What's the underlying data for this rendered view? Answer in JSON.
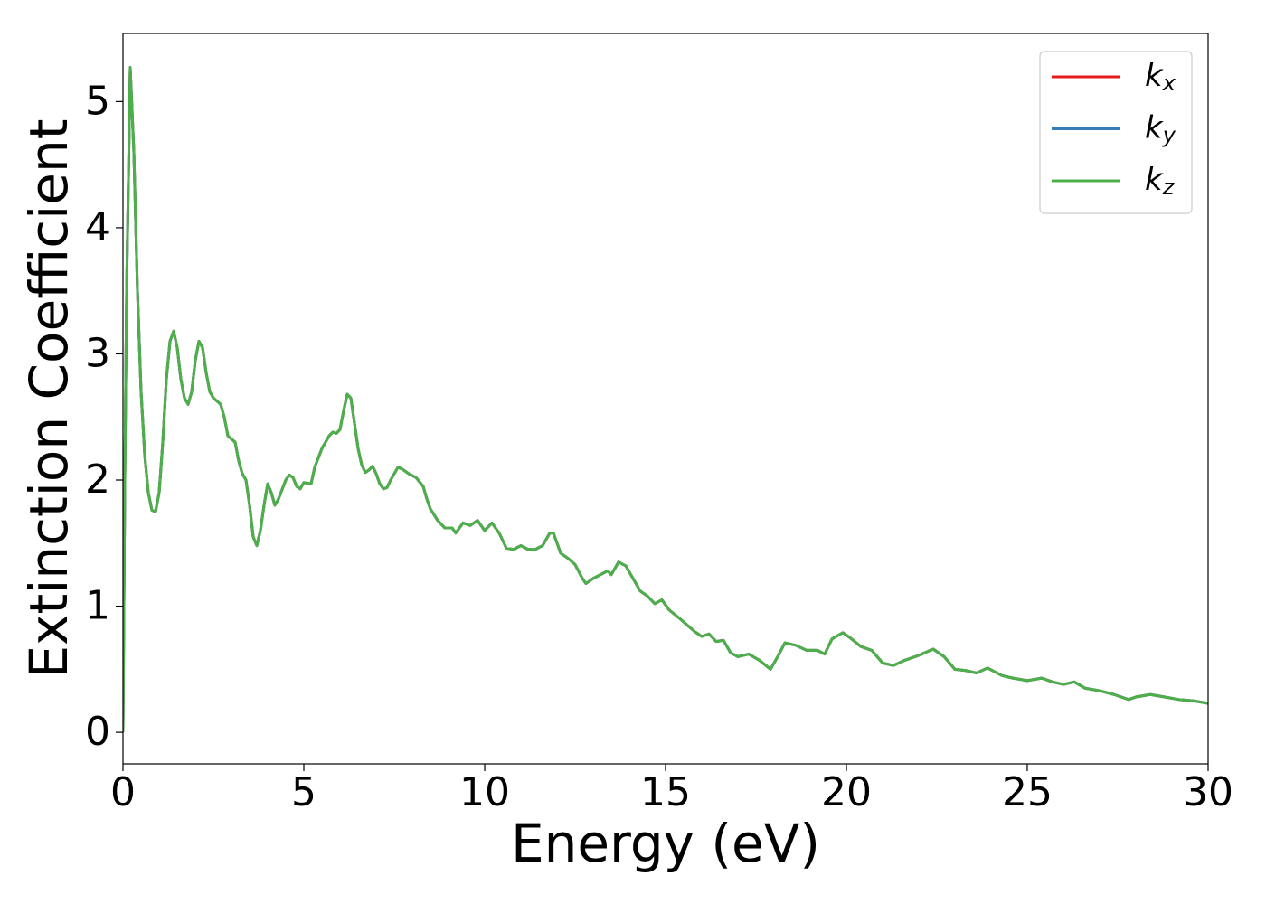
{
  "chart_data": {
    "type": "line",
    "x_label": "Energy (eV)",
    "y_label": "Extinction Coefficient",
    "x": [
      0,
      0.05,
      0.1,
      0.2,
      0.3,
      0.4,
      0.5,
      0.6,
      0.7,
      0.8,
      0.9,
      1.0,
      1.1,
      1.2,
      1.3,
      1.4,
      1.5,
      1.6,
      1.7,
      1.8,
      1.9,
      2.0,
      2.1,
      2.2,
      2.3,
      2.4,
      2.5,
      2.7,
      2.8,
      2.9,
      3.1,
      3.2,
      3.3,
      3.4,
      3.5,
      3.6,
      3.7,
      3.8,
      3.9,
      4.0,
      4.1,
      4.2,
      4.3,
      4.5,
      4.6,
      4.7,
      4.8,
      4.9,
      5.0,
      5.2,
      5.3,
      5.5,
      5.7,
      5.8,
      5.9,
      6.0,
      6.1,
      6.2,
      6.3,
      6.4,
      6.5,
      6.6,
      6.7,
      6.8,
      6.9,
      7.0,
      7.1,
      7.2,
      7.3,
      7.4,
      7.6,
      7.7,
      7.9,
      8.1,
      8.3,
      8.4,
      8.5,
      8.7,
      8.9,
      9.1,
      9.2,
      9.4,
      9.6,
      9.8,
      10.0,
      10.2,
      10.4,
      10.6,
      10.8,
      11.0,
      11.2,
      11.4,
      11.6,
      11.8,
      11.9,
      12.1,
      12.3,
      12.5,
      12.7,
      12.8,
      13.0,
      13.2,
      13.4,
      13.5,
      13.7,
      13.9,
      14.1,
      14.3,
      14.5,
      14.7,
      14.9,
      15.1,
      15.4,
      15.8,
      16.0,
      16.2,
      16.4,
      16.6,
      16.8,
      17.0,
      17.3,
      17.6,
      17.9,
      18.1,
      18.3,
      18.6,
      18.9,
      19.2,
      19.4,
      19.6,
      19.9,
      20.1,
      20.4,
      20.7,
      21.0,
      21.3,
      21.6,
      22.0,
      22.4,
      22.7,
      23.0,
      23.3,
      23.6,
      23.9,
      24.3,
      24.6,
      25.0,
      25.4,
      25.7,
      26.0,
      26.3,
      26.6,
      27.0,
      27.4,
      27.8,
      28.0,
      28.4,
      28.8,
      29.2,
      29.6,
      30.0
    ],
    "series": [
      {
        "name": "kx",
        "color": "#e41a1c",
        "values": [
          0,
          2.0,
          3.5,
          5.27,
          4.6,
          3.5,
          2.7,
          2.2,
          1.9,
          1.76,
          1.75,
          1.9,
          2.3,
          2.8,
          3.1,
          3.18,
          3.05,
          2.8,
          2.65,
          2.6,
          2.7,
          2.95,
          3.1,
          3.05,
          2.85,
          2.7,
          2.65,
          2.6,
          2.5,
          2.35,
          2.3,
          2.15,
          2.05,
          2.0,
          1.8,
          1.55,
          1.48,
          1.6,
          1.8,
          1.97,
          1.9,
          1.8,
          1.85,
          2.0,
          2.04,
          2.02,
          1.95,
          1.93,
          1.98,
          1.97,
          2.1,
          2.25,
          2.35,
          2.38,
          2.37,
          2.4,
          2.55,
          2.68,
          2.65,
          2.45,
          2.25,
          2.12,
          2.06,
          2.08,
          2.11,
          2.05,
          1.97,
          1.93,
          1.94,
          2.0,
          2.1,
          2.09,
          2.05,
          2.02,
          1.95,
          1.85,
          1.77,
          1.68,
          1.62,
          1.62,
          1.58,
          1.66,
          1.64,
          1.68,
          1.6,
          1.66,
          1.58,
          1.46,
          1.45,
          1.48,
          1.45,
          1.45,
          1.48,
          1.58,
          1.58,
          1.42,
          1.38,
          1.33,
          1.22,
          1.18,
          1.22,
          1.25,
          1.28,
          1.25,
          1.35,
          1.32,
          1.22,
          1.12,
          1.08,
          1.02,
          1.05,
          0.97,
          0.9,
          0.8,
          0.76,
          0.78,
          0.72,
          0.73,
          0.63,
          0.6,
          0.62,
          0.57,
          0.5,
          0.6,
          0.71,
          0.69,
          0.65,
          0.65,
          0.62,
          0.74,
          0.79,
          0.75,
          0.68,
          0.65,
          0.55,
          0.53,
          0.57,
          0.61,
          0.66,
          0.6,
          0.5,
          0.49,
          0.47,
          0.51,
          0.45,
          0.43,
          0.41,
          0.43,
          0.4,
          0.38,
          0.4,
          0.35,
          0.33,
          0.3,
          0.26,
          0.28,
          0.3,
          0.28,
          0.26,
          0.25,
          0.23
        ]
      },
      {
        "name": "ky",
        "color": "#377eb8",
        "values": [
          0,
          2.0,
          3.5,
          5.27,
          4.6,
          3.5,
          2.7,
          2.2,
          1.9,
          1.76,
          1.75,
          1.9,
          2.3,
          2.8,
          3.1,
          3.18,
          3.05,
          2.8,
          2.65,
          2.6,
          2.7,
          2.95,
          3.1,
          3.05,
          2.85,
          2.7,
          2.65,
          2.6,
          2.5,
          2.35,
          2.3,
          2.15,
          2.05,
          2.0,
          1.8,
          1.55,
          1.48,
          1.6,
          1.8,
          1.97,
          1.9,
          1.8,
          1.85,
          2.0,
          2.04,
          2.02,
          1.95,
          1.93,
          1.98,
          1.97,
          2.1,
          2.25,
          2.35,
          2.38,
          2.37,
          2.4,
          2.55,
          2.68,
          2.65,
          2.45,
          2.25,
          2.12,
          2.06,
          2.08,
          2.11,
          2.05,
          1.97,
          1.93,
          1.94,
          2.0,
          2.1,
          2.09,
          2.05,
          2.02,
          1.95,
          1.85,
          1.77,
          1.68,
          1.62,
          1.62,
          1.58,
          1.66,
          1.64,
          1.68,
          1.6,
          1.66,
          1.58,
          1.46,
          1.45,
          1.48,
          1.45,
          1.45,
          1.48,
          1.58,
          1.58,
          1.42,
          1.38,
          1.33,
          1.22,
          1.18,
          1.22,
          1.25,
          1.28,
          1.25,
          1.35,
          1.32,
          1.22,
          1.12,
          1.08,
          1.02,
          1.05,
          0.97,
          0.9,
          0.8,
          0.76,
          0.78,
          0.72,
          0.73,
          0.63,
          0.6,
          0.62,
          0.57,
          0.5,
          0.6,
          0.71,
          0.69,
          0.65,
          0.65,
          0.62,
          0.74,
          0.79,
          0.75,
          0.68,
          0.65,
          0.55,
          0.53,
          0.57,
          0.61,
          0.66,
          0.6,
          0.5,
          0.49,
          0.47,
          0.51,
          0.45,
          0.43,
          0.41,
          0.43,
          0.4,
          0.38,
          0.4,
          0.35,
          0.33,
          0.3,
          0.26,
          0.28,
          0.3,
          0.28,
          0.26,
          0.25,
          0.23
        ]
      },
      {
        "name": "kz",
        "color": "#4daf4a",
        "values": [
          0,
          2.0,
          3.5,
          5.27,
          4.6,
          3.5,
          2.7,
          2.2,
          1.9,
          1.76,
          1.75,
          1.9,
          2.3,
          2.8,
          3.1,
          3.18,
          3.05,
          2.8,
          2.65,
          2.6,
          2.7,
          2.95,
          3.1,
          3.05,
          2.85,
          2.7,
          2.65,
          2.6,
          2.5,
          2.35,
          2.3,
          2.15,
          2.05,
          2.0,
          1.8,
          1.55,
          1.48,
          1.6,
          1.8,
          1.97,
          1.9,
          1.8,
          1.85,
          2.0,
          2.04,
          2.02,
          1.95,
          1.93,
          1.98,
          1.97,
          2.1,
          2.25,
          2.35,
          2.38,
          2.37,
          2.4,
          2.55,
          2.68,
          2.65,
          2.45,
          2.25,
          2.12,
          2.06,
          2.08,
          2.11,
          2.05,
          1.97,
          1.93,
          1.94,
          2.0,
          2.1,
          2.09,
          2.05,
          2.02,
          1.95,
          1.85,
          1.77,
          1.68,
          1.62,
          1.62,
          1.58,
          1.66,
          1.64,
          1.68,
          1.6,
          1.66,
          1.58,
          1.46,
          1.45,
          1.48,
          1.45,
          1.45,
          1.48,
          1.58,
          1.58,
          1.42,
          1.38,
          1.33,
          1.22,
          1.18,
          1.22,
          1.25,
          1.28,
          1.25,
          1.35,
          1.32,
          1.22,
          1.12,
          1.08,
          1.02,
          1.05,
          0.97,
          0.9,
          0.8,
          0.76,
          0.78,
          0.72,
          0.73,
          0.63,
          0.6,
          0.62,
          0.57,
          0.5,
          0.6,
          0.71,
          0.69,
          0.65,
          0.65,
          0.62,
          0.74,
          0.79,
          0.75,
          0.68,
          0.65,
          0.55,
          0.53,
          0.57,
          0.61,
          0.66,
          0.6,
          0.5,
          0.49,
          0.47,
          0.51,
          0.45,
          0.43,
          0.41,
          0.43,
          0.4,
          0.38,
          0.4,
          0.35,
          0.33,
          0.3,
          0.26,
          0.28,
          0.3,
          0.28,
          0.26,
          0.25,
          0.23
        ]
      }
    ],
    "xlim": [
      0,
      30
    ],
    "xticks": [
      0,
      5,
      10,
      15,
      20,
      25,
      30
    ],
    "ylim": [
      -0.25,
      5.54
    ],
    "yticks": [
      0,
      1,
      2,
      3,
      4,
      5
    ],
    "grid": false,
    "legend": "upper right"
  }
}
